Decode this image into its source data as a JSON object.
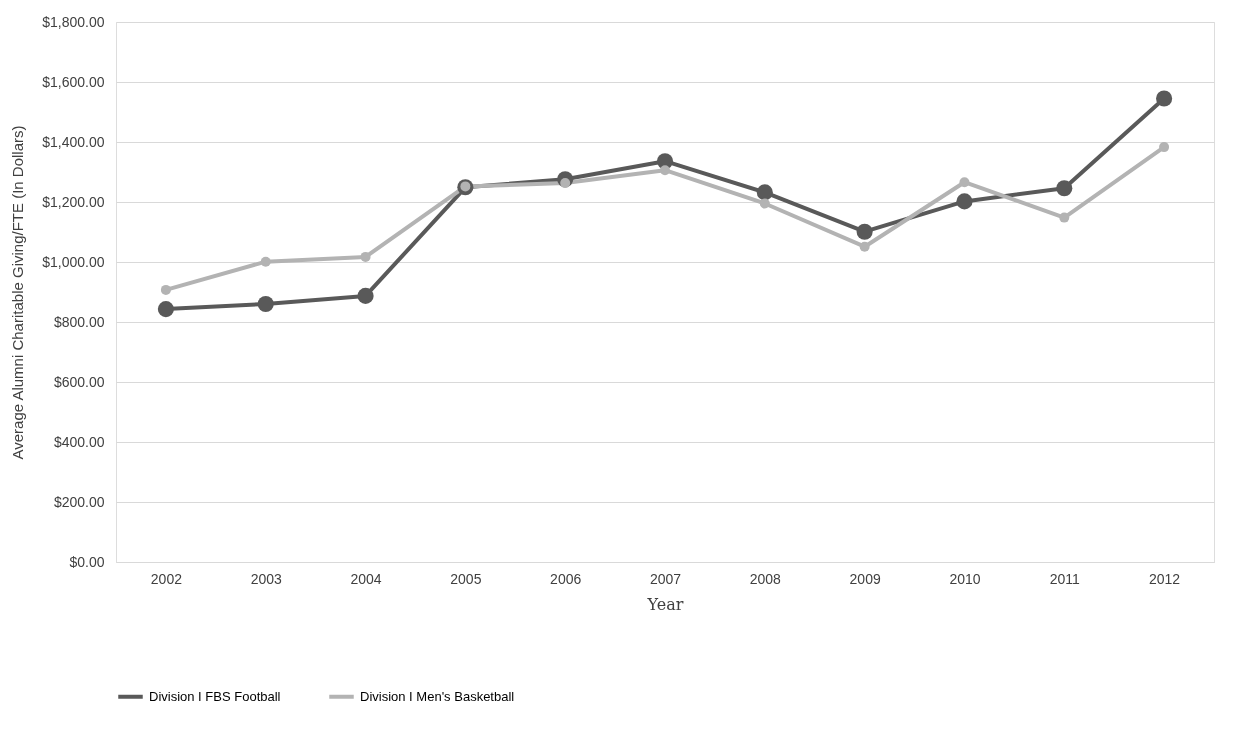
{
  "chart_data": {
    "type": "line",
    "xlabel": "Year",
    "ylabel": "Average Alumni Charitable Giving/FTE (In Dollars)",
    "categories": [
      "2002",
      "2003",
      "2004",
      "2005",
      "2006",
      "2007",
      "2008",
      "2009",
      "2010",
      "2011",
      "2012"
    ],
    "series": [
      {
        "name": "Division I FBS Football",
        "color": "#595959",
        "values": [
          843,
          860,
          887,
          1249,
          1276,
          1336,
          1232,
          1101,
          1202,
          1246,
          1545
        ]
      },
      {
        "name": "Division I Men's Basketball",
        "color": "#b3b3b3",
        "values": [
          907,
          1001,
          1017,
          1252,
          1263,
          1306,
          1195,
          1051,
          1266,
          1148,
          1383
        ]
      }
    ],
    "ylim": [
      0,
      1800
    ],
    "yticks": [
      {
        "value": 0,
        "label": "$0.00"
      },
      {
        "value": 200,
        "label": "$200.00"
      },
      {
        "value": 400,
        "label": "$400.00"
      },
      {
        "value": 600,
        "label": "$600.00"
      },
      {
        "value": 800,
        "label": "$800.00"
      },
      {
        "value": 1000,
        "label": "$1,000.00"
      },
      {
        "value": 1200,
        "label": "$1,200.00"
      },
      {
        "value": 1400,
        "label": "$1,400.00"
      },
      {
        "value": 1600,
        "label": "$1,600.00"
      },
      {
        "value": 1800,
        "label": "$1,800.00"
      }
    ],
    "grid": "y",
    "legend": "bottom",
    "marker": "circle",
    "line_style": "solid"
  }
}
